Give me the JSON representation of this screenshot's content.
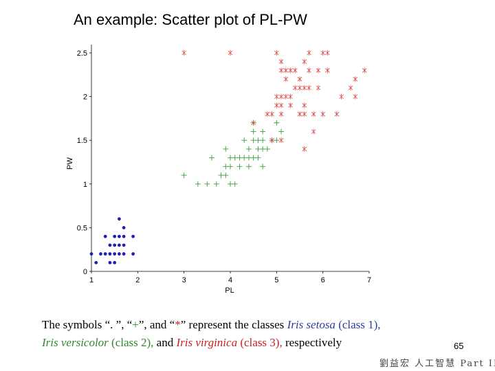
{
  "slide": {
    "title": "An example: Scatter plot of PL-PW",
    "caption_parts": {
      "p1": "The symbols “. ”, “",
      "plus": "+",
      "p2": "”, and “",
      "star": "*",
      "p3": "” represent the classes ",
      "setosa": "Iris setosa",
      "class1": " (class 1),",
      "versicolor": "Iris versicolor",
      "class2": " (class 2),",
      "p4": " and ",
      "virginica": "Iris virginica",
      "class3": " (class 3),",
      "p5": " respectively"
    },
    "page_number": "65",
    "footer": "劉益宏 人工智慧 Part II"
  },
  "chart_data": {
    "type": "scatter",
    "xlabel": "PL",
    "ylabel": "PW",
    "xlim": [
      1,
      7
    ],
    "ylim": [
      0,
      2.5
    ],
    "xticks": [
      "1",
      "2",
      "3",
      "4",
      "5",
      "6",
      "7"
    ],
    "yticks": [
      "0",
      "0.5",
      "1",
      "1.5",
      "2",
      "2.5"
    ],
    "grid": false,
    "colors": {
      "setosa": "#1f1fb4",
      "versicolor": "#3a9a3a",
      "virginica": "#d94a4a"
    },
    "series": [
      {
        "marker": "dot",
        "points": [
          [
            1.6,
            0.6
          ],
          [
            1.7,
            0.5
          ],
          [
            1.3,
            0.4
          ],
          [
            1.5,
            0.4
          ],
          [
            1.6,
            0.4
          ],
          [
            1.7,
            0.4
          ],
          [
            1.9,
            0.4
          ],
          [
            1.4,
            0.3
          ],
          [
            1.5,
            0.3
          ],
          [
            1.6,
            0.3
          ],
          [
            1.7,
            0.3
          ],
          [
            1.0,
            0.2
          ],
          [
            1.2,
            0.2
          ],
          [
            1.3,
            0.2
          ],
          [
            1.4,
            0.2
          ],
          [
            1.5,
            0.2
          ],
          [
            1.6,
            0.2
          ],
          [
            1.7,
            0.2
          ],
          [
            1.9,
            0.2
          ],
          [
            1.1,
            0.1
          ],
          [
            1.4,
            0.1
          ],
          [
            1.5,
            0.1
          ]
        ]
      },
      {
        "marker": "plus",
        "points": [
          [
            4.5,
            1.7
          ],
          [
            5.0,
            1.7
          ],
          [
            4.5,
            1.6
          ],
          [
            4.7,
            1.6
          ],
          [
            5.1,
            1.6
          ],
          [
            4.3,
            1.5
          ],
          [
            4.5,
            1.5
          ],
          [
            4.6,
            1.5
          ],
          [
            4.7,
            1.5
          ],
          [
            4.9,
            1.5
          ],
          [
            5.0,
            1.5
          ],
          [
            3.9,
            1.4
          ],
          [
            4.4,
            1.4
          ],
          [
            4.6,
            1.4
          ],
          [
            4.7,
            1.4
          ],
          [
            4.8,
            1.4
          ],
          [
            3.6,
            1.3
          ],
          [
            4.0,
            1.3
          ],
          [
            4.1,
            1.3
          ],
          [
            4.2,
            1.3
          ],
          [
            4.3,
            1.3
          ],
          [
            4.4,
            1.3
          ],
          [
            4.5,
            1.3
          ],
          [
            4.6,
            1.3
          ],
          [
            3.9,
            1.2
          ],
          [
            4.0,
            1.2
          ],
          [
            4.2,
            1.2
          ],
          [
            4.4,
            1.2
          ],
          [
            4.7,
            1.2
          ],
          [
            3.0,
            1.1
          ],
          [
            3.8,
            1.1
          ],
          [
            3.9,
            1.1
          ],
          [
            3.3,
            1.0
          ],
          [
            3.5,
            1.0
          ],
          [
            3.7,
            1.0
          ],
          [
            4.0,
            1.0
          ],
          [
            4.1,
            1.0
          ]
        ]
      },
      {
        "marker": "star",
        "points": [
          [
            3.0,
            2.5
          ],
          [
            4.0,
            2.5
          ],
          [
            5.0,
            2.5
          ],
          [
            5.7,
            2.5
          ],
          [
            6.0,
            2.5
          ],
          [
            6.1,
            2.5
          ],
          [
            5.1,
            2.4
          ],
          [
            5.6,
            2.4
          ],
          [
            5.1,
            2.3
          ],
          [
            5.2,
            2.3
          ],
          [
            5.3,
            2.3
          ],
          [
            5.4,
            2.3
          ],
          [
            5.7,
            2.3
          ],
          [
            5.9,
            2.3
          ],
          [
            6.1,
            2.3
          ],
          [
            6.9,
            2.3
          ],
          [
            5.2,
            2.2
          ],
          [
            5.5,
            2.2
          ],
          [
            6.7,
            2.2
          ],
          [
            5.4,
            2.1
          ],
          [
            5.5,
            2.1
          ],
          [
            5.6,
            2.1
          ],
          [
            5.7,
            2.1
          ],
          [
            5.9,
            2.1
          ],
          [
            6.6,
            2.1
          ],
          [
            5.0,
            2.0
          ],
          [
            5.1,
            2.0
          ],
          [
            5.2,
            2.0
          ],
          [
            5.3,
            2.0
          ],
          [
            6.4,
            2.0
          ],
          [
            6.7,
            2.0
          ],
          [
            5.0,
            1.9
          ],
          [
            5.1,
            1.9
          ],
          [
            5.3,
            1.9
          ],
          [
            5.6,
            1.9
          ],
          [
            4.8,
            1.8
          ],
          [
            4.9,
            1.8
          ],
          [
            5.1,
            1.8
          ],
          [
            5.5,
            1.8
          ],
          [
            5.6,
            1.8
          ],
          [
            5.8,
            1.8
          ],
          [
            6.0,
            1.8
          ],
          [
            6.3,
            1.8
          ],
          [
            4.5,
            1.7
          ],
          [
            5.8,
            1.6
          ],
          [
            5.6,
            1.4
          ],
          [
            4.9,
            1.5
          ],
          [
            5.1,
            1.5
          ]
        ]
      }
    ]
  }
}
